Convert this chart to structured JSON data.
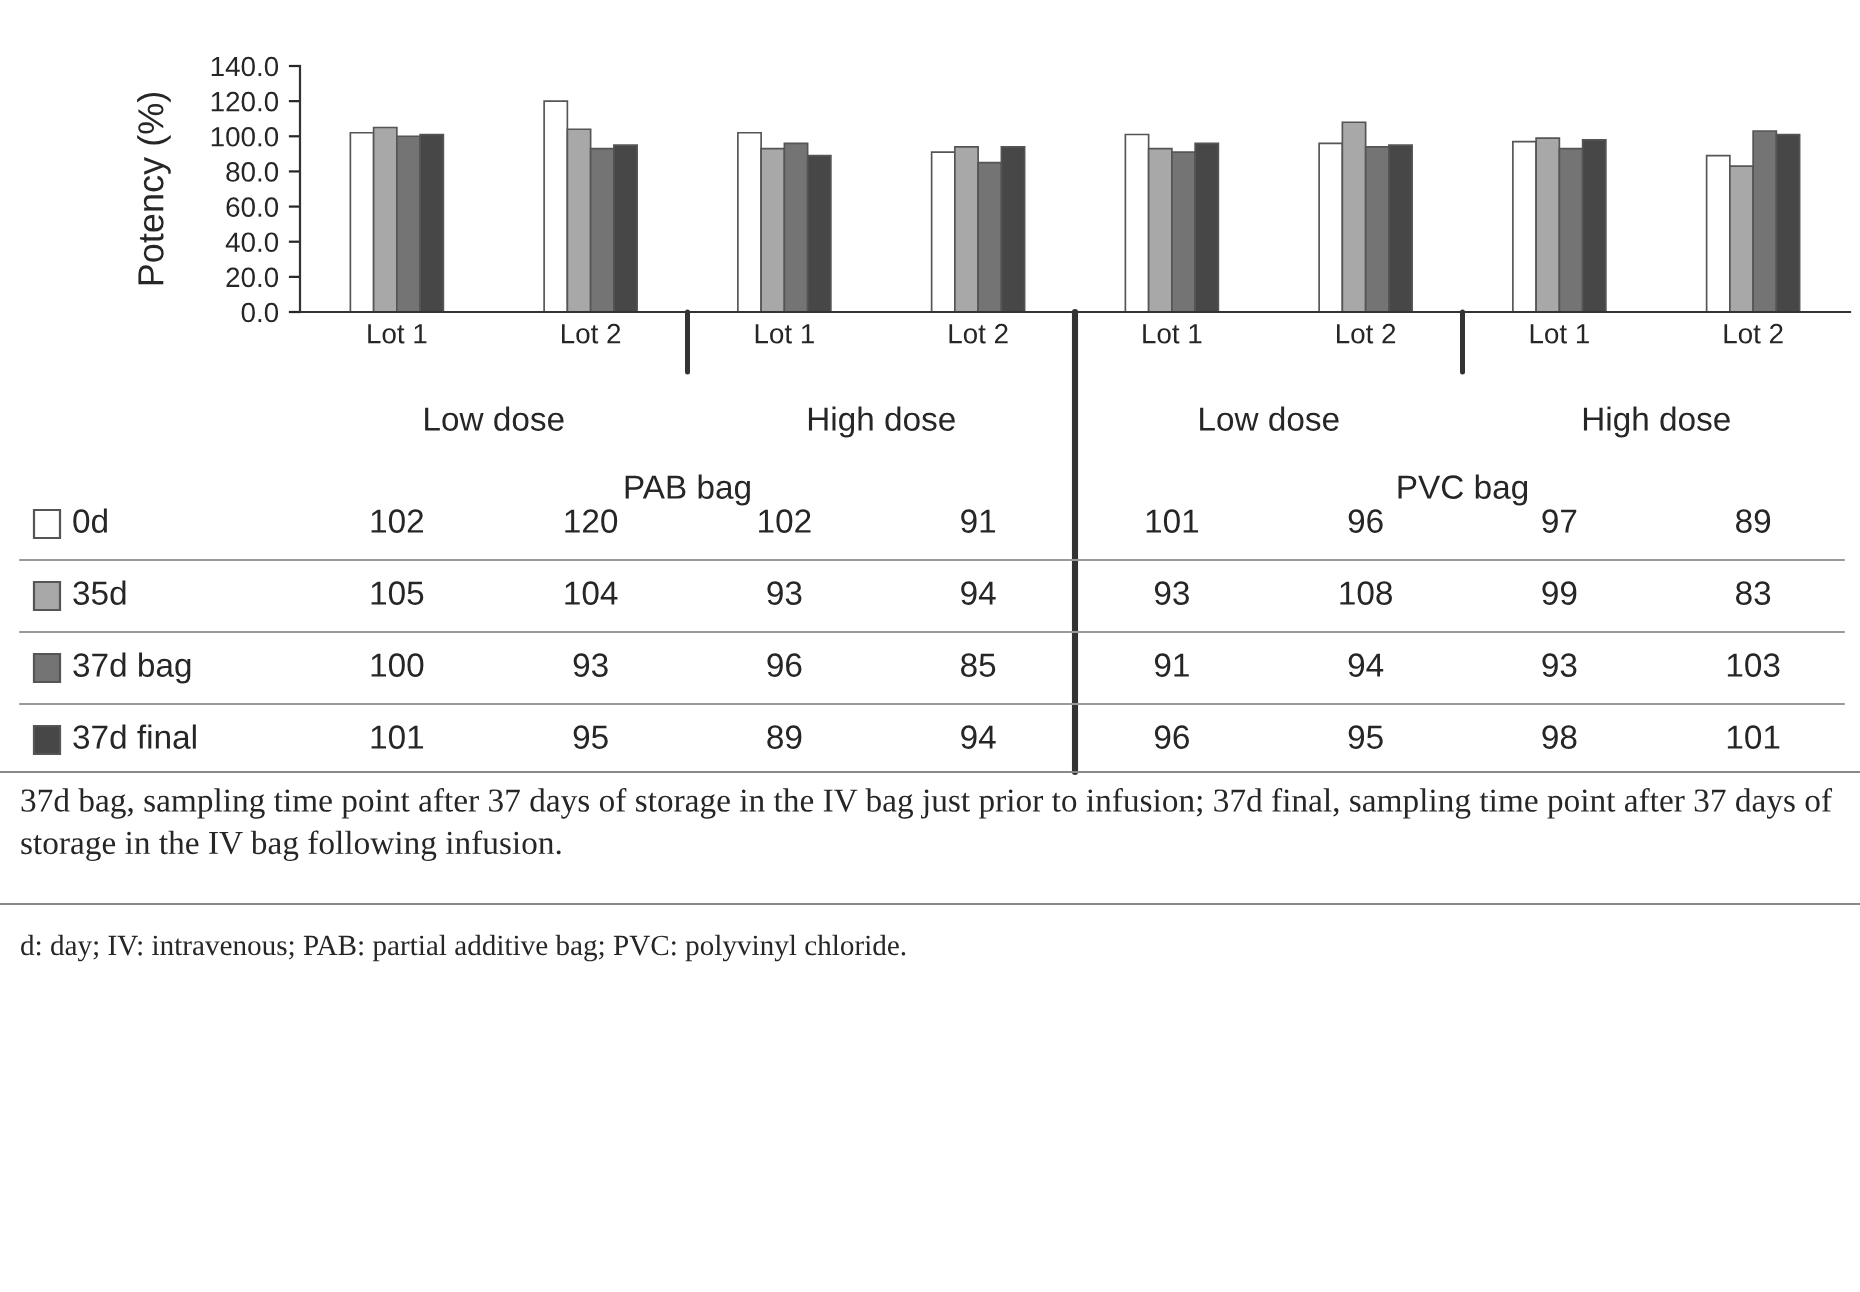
{
  "chart_data": {
    "type": "bar",
    "ylabel": "Potency (%)",
    "categories": [
      "Lot 1",
      "Lot 2",
      "Lot 1",
      "Lot 2",
      "Lot 1",
      "Lot 2",
      "Lot 1",
      "Lot 2"
    ],
    "series": [
      {
        "name": "0d",
        "color": "#ffffff",
        "values": [
          102,
          120,
          102,
          91,
          101,
          96,
          97,
          89
        ]
      },
      {
        "name": "35d",
        "color": "#a8a8a8",
        "values": [
          105,
          104,
          93,
          94,
          93,
          108,
          99,
          83
        ]
      },
      {
        "name": "37d bag",
        "color": "#747474",
        "values": [
          100,
          93,
          96,
          85,
          91,
          94,
          93,
          103
        ]
      },
      {
        "name": "37d final",
        "color": "#474747",
        "values": [
          101,
          95,
          89,
          94,
          96,
          95,
          98,
          101
        ]
      }
    ],
    "ylim": [
      0,
      140
    ],
    "yticks": [
      {
        "value": 0,
        "label": "0.0"
      },
      {
        "value": 20,
        "label": "20.0"
      },
      {
        "value": 40,
        "label": "40.0"
      },
      {
        "value": 60,
        "label": "60.0"
      },
      {
        "value": 80,
        "label": "80.0"
      },
      {
        "value": 100,
        "label": "100.0"
      },
      {
        "value": 120,
        "label": "120.0"
      },
      {
        "value": 140,
        "label": "140.0"
      }
    ],
    "grid": false,
    "legend": "bottom left",
    "data_labels": true,
    "annotations": [
      "Low dose",
      "High dose",
      "Low dose",
      "High dose",
      "PAB bag",
      "PVC bag",
      "37d bag, sampling time point after 37 days of storage in the IV bag just prior to infusion; 37d final, sampling time point after 37 days of storage in the IV bag following infusion.",
      "d: day; IV: intravenous; PAB: partial additive bag; PVC: polyvinyl chloride."
    ]
  }
}
